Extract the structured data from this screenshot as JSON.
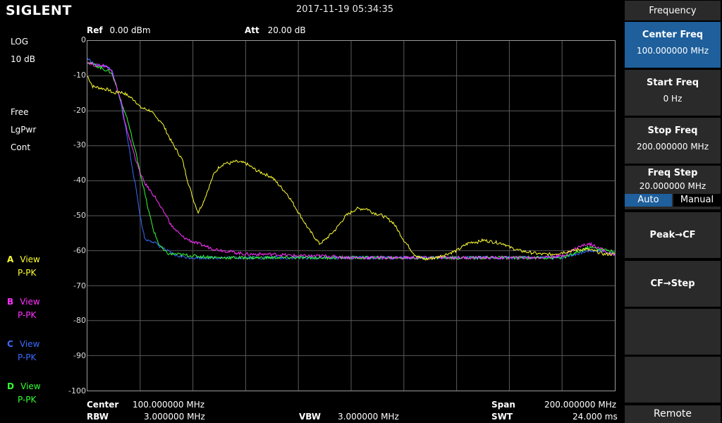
{
  "header": {
    "logo": "SIGLENT",
    "datetime": "2017-11-19   05:34:35",
    "ref_label": "Ref",
    "ref_value": "0.00 dBm",
    "att_label": "Att",
    "att_value": "20.00 dB"
  },
  "left": {
    "scale_type": "LOG",
    "scale_div": "10 dB",
    "sweep": "Free",
    "detect": "LgPwr",
    "mode": "Cont"
  },
  "traces": [
    {
      "letter": "A",
      "view": "View",
      "mode": "P-PK",
      "color": "#ffff33"
    },
    {
      "letter": "B",
      "view": "View",
      "mode": "P-PK",
      "color": "#ff33ff"
    },
    {
      "letter": "C",
      "view": "View",
      "mode": "P-PK",
      "color": "#3a6cff"
    },
    {
      "letter": "D",
      "view": "View",
      "mode": "P-PK",
      "color": "#33ff33"
    }
  ],
  "y_ticks": [
    "0",
    "-10",
    "-20",
    "-30",
    "-40",
    "-50",
    "-60",
    "-70",
    "-80",
    "-90",
    "-100"
  ],
  "bottom": {
    "center_label": "Center",
    "center_value": "100.000000 MHz",
    "rbw_label": "RBW",
    "rbw_value": "3.000000 MHz",
    "vbw_label": "VBW",
    "vbw_value": "3.000000 MHz",
    "span_label": "Span",
    "span_value": "200.000000 MHz",
    "swt_label": "SWT",
    "swt_value": "24.000 ms"
  },
  "softkeys": {
    "title": "Frequency",
    "center_freq": {
      "label": "Center Freq",
      "value": "100.000000 MHz"
    },
    "start_freq": {
      "label": "Start Freq",
      "value": "0 Hz"
    },
    "stop_freq": {
      "label": "Stop Freq",
      "value": "200.000000 MHz"
    },
    "freq_step": {
      "label": "Freq Step",
      "value": "20.000000 MHz",
      "auto": "Auto",
      "manual": "Manual"
    },
    "peak_cf": "Peak→CF",
    "cf_step": "CF→Step",
    "remote": "Remote"
  },
  "chart_data": {
    "type": "line",
    "x_unit": "MHz",
    "y_unit": "dBm",
    "xlim": [
      0,
      200
    ],
    "ylim": [
      -100,
      0
    ],
    "grid": true,
    "series": [
      {
        "name": "A",
        "color": "#ffff33",
        "x": [
          0,
          2,
          5,
          8,
          10,
          12,
          14,
          16,
          18,
          20,
          24,
          26,
          28,
          32,
          36,
          38,
          40,
          42,
          44,
          46,
          48,
          50,
          52,
          54,
          56,
          60,
          64,
          70,
          76,
          80,
          84,
          86,
          88,
          90,
          94,
          98,
          100,
          102,
          104,
          106,
          108,
          112,
          116,
          120,
          124,
          126,
          128,
          132,
          136,
          140,
          144,
          146,
          148,
          150,
          154,
          158,
          160,
          164,
          168,
          172,
          176,
          180,
          184,
          188,
          192,
          196,
          200
        ],
        "y": [
          -10,
          -13,
          -13.5,
          -14,
          -15,
          -14.5,
          -15,
          -16,
          -17,
          -19,
          -20,
          -22,
          -23,
          -29,
          -34,
          -40,
          -45,
          -49,
          -46,
          -42,
          -38,
          -36,
          -35,
          -35,
          -34.5,
          -35,
          -37,
          -39,
          -44,
          -49,
          -54,
          -56,
          -58,
          -57,
          -54,
          -50,
          -49,
          -48,
          -48,
          -48,
          -49,
          -50,
          -52,
          -57,
          -61,
          -62,
          -62.5,
          -62,
          -61,
          -60,
          -58,
          -57.5,
          -57.5,
          -57,
          -57.5,
          -58,
          -59,
          -60,
          -60.5,
          -61,
          -61,
          -60.5,
          -60,
          -59.5,
          -60,
          -61,
          -61
        ]
      },
      {
        "name": "B",
        "color": "#ff33ff",
        "x": [
          0,
          3,
          6,
          9,
          11,
          13,
          14,
          16,
          18,
          20,
          22,
          24,
          26,
          28,
          30,
          32,
          36,
          40,
          44,
          48,
          52,
          56,
          60,
          64,
          70,
          80,
          90,
          100,
          110,
          120,
          130,
          140,
          150,
          160,
          170,
          180,
          186,
          190,
          194,
          198,
          200
        ],
        "y": [
          -6,
          -7,
          -7,
          -8,
          -13,
          -18,
          -23,
          -28,
          -33,
          -38,
          -41,
          -43,
          -45,
          -48,
          -50,
          -53,
          -56,
          -57.5,
          -58.5,
          -59.5,
          -60,
          -60.5,
          -61,
          -61,
          -61,
          -61.5,
          -61.5,
          -62,
          -62,
          -62,
          -62,
          -62,
          -62,
          -62,
          -62,
          -61.5,
          -59,
          -58,
          -59,
          -61,
          -61
        ]
      },
      {
        "name": "C",
        "color": "#3a6cff",
        "x": [
          0,
          3,
          6,
          9,
          11,
          13,
          15,
          17,
          19,
          20,
          21,
          22,
          24,
          26,
          28,
          30,
          34,
          40,
          50,
          60,
          70,
          80,
          100,
          120,
          140,
          160,
          180,
          185,
          190,
          194,
          198,
          200
        ],
        "y": [
          -5,
          -7,
          -7,
          -8,
          -13,
          -19,
          -27,
          -36,
          -45,
          -50,
          -54,
          -57,
          -57,
          -58,
          -59,
          -60,
          -61.5,
          -62,
          -62,
          -62,
          -62,
          -62,
          -62,
          -62,
          -62,
          -62,
          -62,
          -61,
          -60,
          -60,
          -60.5,
          -61
        ]
      },
      {
        "name": "D",
        "color": "#33ff33",
        "x": [
          0,
          3,
          6,
          9,
          11,
          13,
          15,
          17,
          19,
          21,
          23,
          25,
          27,
          29,
          31,
          34,
          40,
          50,
          60,
          70,
          80,
          100,
          120,
          140,
          160,
          180,
          186,
          190,
          194,
          198,
          200
        ],
        "y": [
          -6,
          -7,
          -8,
          -9,
          -13,
          -18,
          -22,
          -28,
          -34,
          -41,
          -48,
          -54,
          -58,
          -60,
          -61,
          -61,
          -61.5,
          -62,
          -62,
          -62,
          -62,
          -62,
          -62,
          -62,
          -62,
          -62,
          -60.5,
          -59,
          -59.5,
          -60,
          -60.5
        ]
      }
    ]
  }
}
